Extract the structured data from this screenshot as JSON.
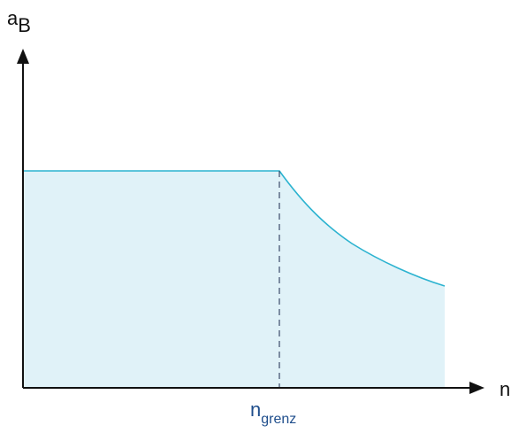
{
  "diagram": {
    "y_axis_label": "a",
    "y_axis_subscript": "B",
    "x_axis_label": "n",
    "breakpoint_label": "n",
    "breakpoint_subscript": "grenz"
  },
  "colors": {
    "fill": "#e0f2f8",
    "curve": "#2cb3d0",
    "axis": "#111111",
    "dashed_line": "#3a4a6a",
    "breakpoint_label": "#1f4e8c"
  }
}
